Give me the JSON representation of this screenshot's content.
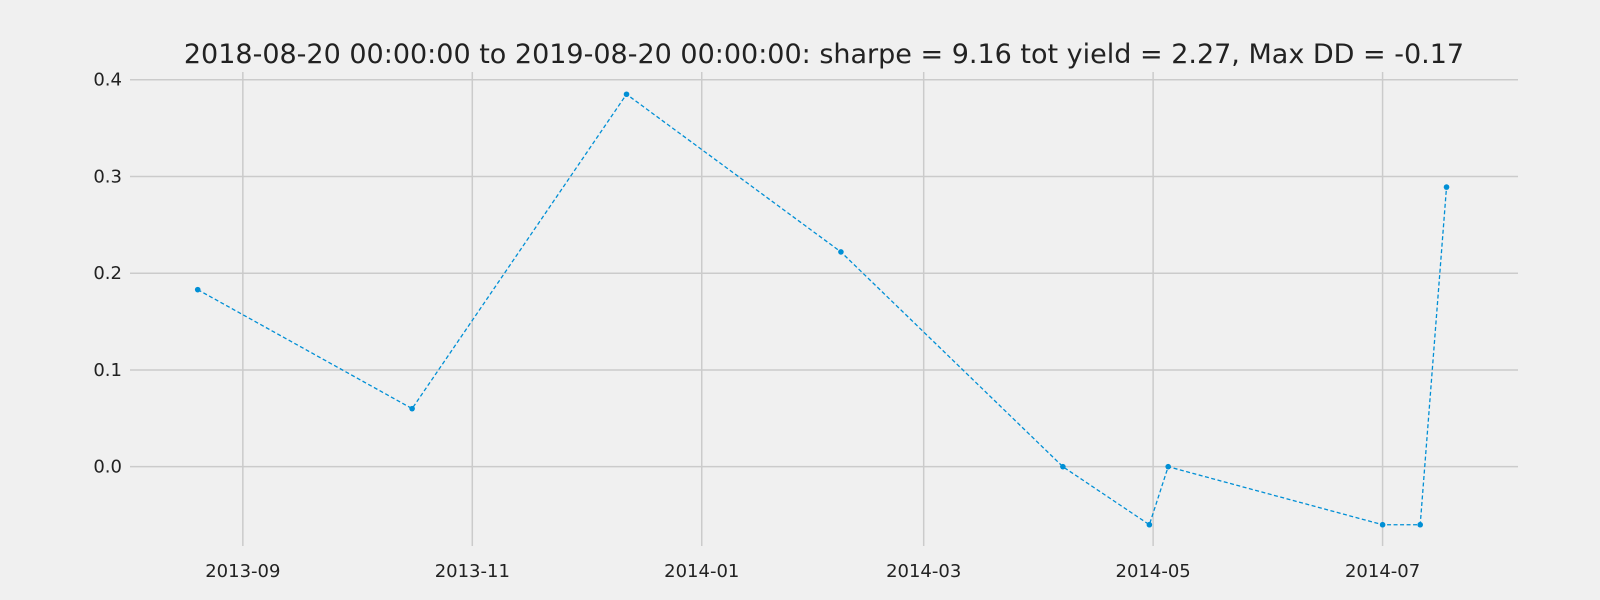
{
  "chart_data": {
    "type": "line",
    "title": "2018-08-20 00:00:00 to 2019-08-20 00:00:00: sharpe = 9.16 tot yield = 2.27, Max DD = -0.17",
    "xlabel": "",
    "ylabel": "",
    "x_type": "date",
    "xlim": [
      "2013-08-02",
      "2014-08-06"
    ],
    "ylim": [
      -0.082,
      0.408
    ],
    "x_ticks": [
      "2013-09-01",
      "2013-11-01",
      "2014-01-01",
      "2014-03-01",
      "2014-05-01",
      "2014-07-01"
    ],
    "x_tick_labels": [
      "2013-09",
      "2013-11",
      "2014-01",
      "2014-03",
      "2014-05",
      "2014-07"
    ],
    "y_ticks": [
      0.0,
      0.1,
      0.2,
      0.3,
      0.4
    ],
    "y_tick_labels": [
      "0.0",
      "0.1",
      "0.2",
      "0.3",
      "0.4"
    ],
    "grid": true,
    "legend": "none",
    "colors": {
      "background": "#f0f0f0",
      "grid": "#cbcbcb",
      "series": "#008fd5",
      "text": "#222222"
    },
    "series": [
      {
        "line_style": "dashed",
        "marker": "dot",
        "points": [
          {
            "x": "2013-08-20",
            "y": 0.183
          },
          {
            "x": "2013-10-16",
            "y": 0.06
          },
          {
            "x": "2013-12-12",
            "y": 0.385
          },
          {
            "x": "2014-02-07",
            "y": 0.222
          },
          {
            "x": "2014-04-07",
            "y": 0.0
          },
          {
            "x": "2014-04-30",
            "y": -0.06
          },
          {
            "x": "2014-05-05",
            "y": 0.0
          },
          {
            "x": "2014-07-01",
            "y": -0.06
          },
          {
            "x": "2014-07-11",
            "y": -0.06
          },
          {
            "x": "2014-07-18",
            "y": 0.289
          }
        ]
      }
    ]
  }
}
